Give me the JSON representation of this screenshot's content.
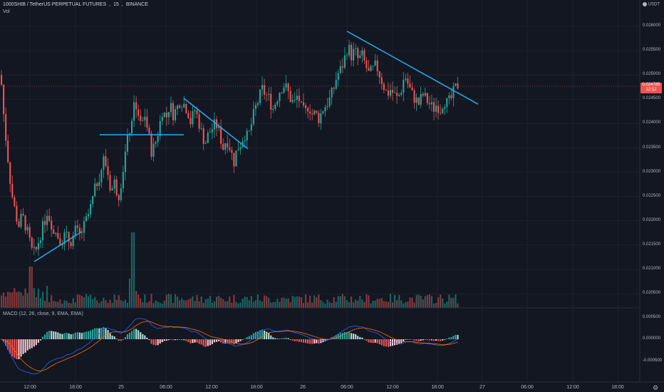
{
  "header": {
    "symbol": "1000SHIB / TetherUS PERPETUAL FUTURES",
    "interval": "15",
    "exchange": "BINANCE",
    "volume_label": "Vol",
    "macd_label": "MACD (12, 26, close, 9, EMA, EMA)",
    "currency": "USDT"
  },
  "price_axis": {
    "labels": [
      "0.026000",
      "0.025500",
      "0.025000",
      "0.024500",
      "0.024000",
      "0.023500",
      "0.023000",
      "0.022500",
      "0.022000",
      "0.021500",
      "0.021000",
      "0.020500"
    ],
    "current_price": "0.024785",
    "countdown": "12:12"
  },
  "macd_axis": {
    "labels": [
      "0.000500",
      "0.000000",
      "-0.000500"
    ]
  },
  "time_axis": {
    "labels": [
      "12:00",
      "18:00",
      "25",
      "06:00",
      "12:00",
      "18:00",
      "26",
      "06:00",
      "12:00",
      "18:00",
      "27",
      "06:00",
      "12:00",
      "18:00"
    ]
  },
  "colors": {
    "background": "#131722",
    "up": "#26a69a",
    "down": "#ef5350",
    "trendline": "#29a3e0",
    "macd_line": "#2962ff",
    "signal_line": "#ff6d00"
  },
  "chart_data": {
    "type": "candlestick",
    "series": [
      {
        "name": "1000SHIB / TetherUS PERPETUAL FUTURES",
        "type": "candlestick"
      },
      {
        "name": "Vol",
        "type": "bar"
      },
      {
        "name": "MACD (12, 26, close, 9, EMA, EMA)",
        "type": "line+histogram"
      }
    ],
    "ylim": [
      0.0204,
      0.0264
    ],
    "close_path": [
      [
        0,
        0.025
      ],
      [
        5,
        0.024
      ],
      [
        10,
        0.0233
      ],
      [
        15,
        0.0226
      ],
      [
        20,
        0.0222
      ],
      [
        25,
        0.0219
      ],
      [
        30,
        0.0221
      ],
      [
        35,
        0.0219
      ],
      [
        40,
        0.0216
      ],
      [
        45,
        0.0213
      ],
      [
        50,
        0.0214
      ],
      [
        55,
        0.0217
      ],
      [
        60,
        0.0219
      ],
      [
        65,
        0.0222
      ],
      [
        70,
        0.022
      ],
      [
        75,
        0.0218
      ],
      [
        80,
        0.0217
      ],
      [
        85,
        0.0216
      ],
      [
        90,
        0.0217
      ],
      [
        95,
        0.0216
      ],
      [
        100,
        0.0216
      ],
      [
        105,
        0.0218
      ],
      [
        110,
        0.0217
      ],
      [
        115,
        0.0218
      ],
      [
        120,
        0.022
      ],
      [
        125,
        0.0222
      ],
      [
        130,
        0.0225
      ],
      [
        135,
        0.0228
      ],
      [
        140,
        0.023
      ],
      [
        145,
        0.0233
      ],
      [
        150,
        0.023
      ],
      [
        155,
        0.0226
      ],
      [
        160,
        0.0228
      ],
      [
        165,
        0.0225
      ],
      [
        170,
        0.0229
      ],
      [
        175,
        0.0234
      ],
      [
        180,
        0.0238
      ],
      [
        185,
        0.0242
      ],
      [
        188,
        0.0245
      ],
      [
        192,
        0.0243
      ],
      [
        197,
        0.0239
      ],
      [
        202,
        0.0242
      ],
      [
        207,
        0.0238
      ],
      [
        212,
        0.0234
      ],
      [
        217,
        0.0236
      ],
      [
        222,
        0.0239
      ],
      [
        227,
        0.0243
      ],
      [
        232,
        0.0241
      ],
      [
        237,
        0.0244
      ],
      [
        242,
        0.0242
      ],
      [
        247,
        0.0243
      ],
      [
        252,
        0.0245
      ],
      [
        257,
        0.0244
      ],
      [
        262,
        0.0243
      ],
      [
        267,
        0.024
      ],
      [
        272,
        0.0243
      ],
      [
        277,
        0.0241
      ],
      [
        282,
        0.0238
      ],
      [
        287,
        0.0236
      ],
      [
        292,
        0.0238
      ],
      [
        297,
        0.0239
      ],
      [
        302,
        0.024
      ],
      [
        307,
        0.0238
      ],
      [
        312,
        0.0235
      ],
      [
        317,
        0.0237
      ],
      [
        322,
        0.0235
      ],
      [
        327,
        0.0232
      ],
      [
        332,
        0.0235
      ],
      [
        337,
        0.0236
      ],
      [
        342,
        0.0238
      ],
      [
        347,
        0.0237
      ],
      [
        352,
        0.024
      ],
      [
        357,
        0.0243
      ],
      [
        362,
        0.0245
      ],
      [
        367,
        0.0247
      ],
      [
        372,
        0.0246
      ],
      [
        377,
        0.0245
      ],
      [
        382,
        0.0243
      ],
      [
        387,
        0.0245
      ],
      [
        392,
        0.0247
      ],
      [
        397,
        0.0248
      ],
      [
        402,
        0.0247
      ],
      [
        407,
        0.0245
      ],
      [
        412,
        0.0244
      ],
      [
        417,
        0.0246
      ],
      [
        422,
        0.0243
      ],
      [
        427,
        0.0242
      ],
      [
        432,
        0.0244
      ],
      [
        437,
        0.0242
      ],
      [
        442,
        0.0242
      ],
      [
        447,
        0.0241
      ],
      [
        452,
        0.0243
      ],
      [
        457,
        0.0244
      ],
      [
        462,
        0.0245
      ],
      [
        467,
        0.0247
      ],
      [
        472,
        0.025
      ],
      [
        477,
        0.0251
      ],
      [
        482,
        0.0253
      ],
      [
        487,
        0.0256
      ],
      [
        492,
        0.0254
      ],
      [
        497,
        0.0255
      ],
      [
        502,
        0.0253
      ],
      [
        507,
        0.0254
      ],
      [
        512,
        0.0252
      ],
      [
        517,
        0.025
      ],
      [
        522,
        0.0251
      ],
      [
        527,
        0.0252
      ],
      [
        532,
        0.025
      ],
      [
        537,
        0.0248
      ],
      [
        542,
        0.0246
      ],
      [
        547,
        0.0247
      ],
      [
        552,
        0.0246
      ],
      [
        557,
        0.0245
      ],
      [
        562,
        0.0247
      ],
      [
        567,
        0.025
      ],
      [
        572,
        0.0248
      ],
      [
        577,
        0.0246
      ],
      [
        582,
        0.0245
      ],
      [
        587,
        0.0244
      ],
      [
        592,
        0.0246
      ],
      [
        597,
        0.0245
      ],
      [
        602,
        0.0244
      ],
      [
        607,
        0.0243
      ],
      [
        612,
        0.0244
      ],
      [
        617,
        0.0243
      ],
      [
        622,
        0.0245
      ],
      [
        627,
        0.0244
      ],
      [
        632,
        0.0245
      ],
      [
        637,
        0.0247
      ],
      [
        642,
        0.0248
      ]
    ],
    "trendlines": [
      {
        "from": [
          48,
          0.02116
        ],
        "to": [
          115,
          0.02178
        ]
      },
      {
        "from": [
          140,
          0.02377
        ],
        "to": [
          258,
          0.02377
        ]
      },
      {
        "from": [
          258,
          0.02452
        ],
        "to": [
          348,
          0.02348
        ]
      },
      {
        "from": [
          487,
          0.0259
        ],
        "to": [
          671,
          0.0244
        ]
      }
    ]
  }
}
